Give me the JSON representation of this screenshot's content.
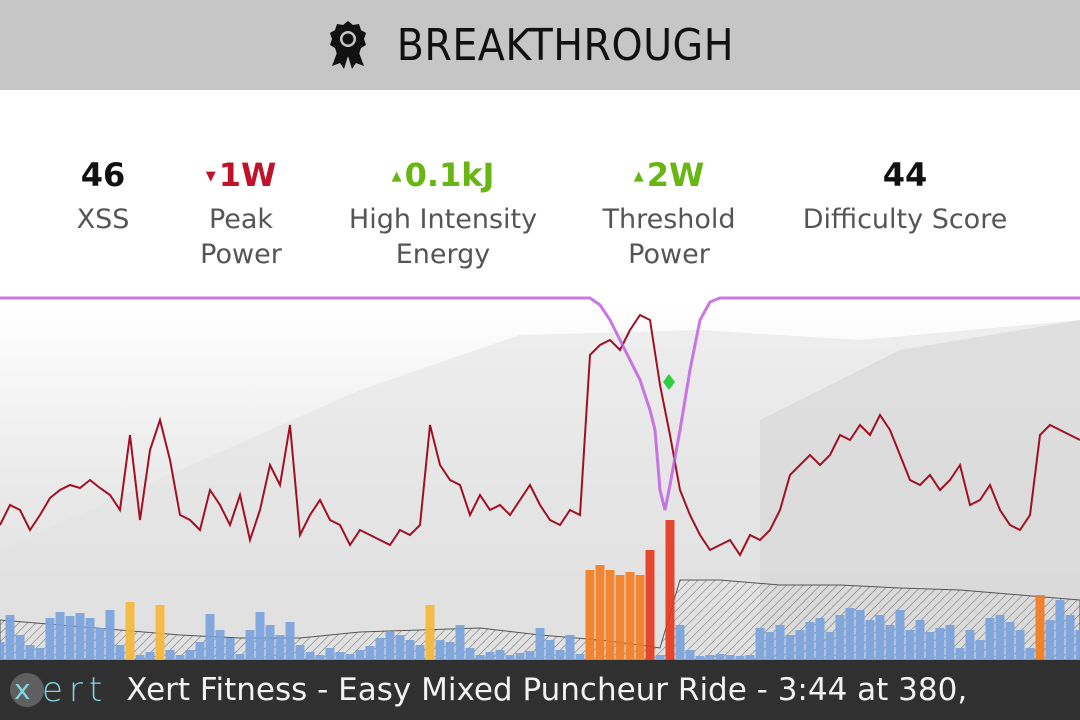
{
  "header": {
    "title": "BREAKTHROUGH",
    "icon": "award-ribbon-icon",
    "background": "#c6c6c6"
  },
  "stats": [
    {
      "value": "46",
      "label_lines": [
        "XSS",
        ""
      ],
      "trend": "none"
    },
    {
      "value": "1W",
      "label_lines": [
        "Peak",
        "Power"
      ],
      "trend": "down",
      "color": "#c1122b"
    },
    {
      "value": "0.1kJ",
      "label_lines": [
        "High Intensity",
        "Energy"
      ],
      "trend": "up",
      "color": "#67b614"
    },
    {
      "value": "2W",
      "label_lines": [
        "Threshold",
        "Power"
      ],
      "trend": "up",
      "color": "#67b614"
    },
    {
      "value": "44",
      "label_lines": [
        "Difficulty Score",
        ""
      ],
      "trend": "none"
    }
  ],
  "chart_data": {
    "type": "area",
    "grid": false,
    "legend": "none",
    "series": [
      {
        "kind": "power-bars",
        "colors": {
          "easy": "#7aa3dc",
          "moderate": "#f5b93a",
          "hard": "#f27d22",
          "peak": "#e53a1e"
        },
        "x": [
          0,
          10,
          20,
          30,
          40,
          50,
          60,
          70,
          80,
          90,
          100,
          110,
          120,
          130,
          140,
          150,
          160,
          170,
          180,
          190,
          200,
          210,
          220,
          230,
          240,
          250,
          260,
          270,
          280,
          290,
          300,
          310,
          320,
          330,
          340,
          350,
          360,
          370,
          380,
          390,
          400,
          410,
          420,
          430,
          440,
          450,
          460,
          470,
          480,
          490,
          500,
          510,
          520,
          530,
          540,
          550,
          560,
          570,
          580,
          590,
          600,
          610,
          620,
          630,
          640,
          650,
          660,
          670,
          680,
          690,
          700,
          710,
          720,
          730,
          740,
          750,
          760,
          770,
          780,
          790,
          800,
          810,
          820,
          830,
          840,
          850,
          860,
          870,
          880,
          890,
          900,
          910,
          920,
          930,
          940,
          950,
          960,
          970,
          980,
          990,
          1000,
          1010,
          1020,
          1030,
          1040,
          1050,
          1060,
          1070,
          1080
        ],
        "values": [
          0.18,
          0.45,
          0.25,
          0.15,
          0.12,
          0.42,
          0.48,
          0.44,
          0.47,
          0.42,
          0.32,
          0.5,
          0.15,
          0.58,
          0.05,
          0.08,
          0.55,
          0.1,
          0.05,
          0.1,
          0.18,
          0.46,
          0.3,
          0.22,
          0.06,
          0.3,
          0.48,
          0.35,
          0.25,
          0.38,
          0.15,
          0.08,
          0.05,
          0.12,
          0.08,
          0.06,
          0.1,
          0.14,
          0.22,
          0.28,
          0.25,
          0.2,
          0.15,
          0.55,
          0.2,
          0.18,
          0.35,
          0.12,
          0.05,
          0.08,
          0.1,
          0.05,
          0.07,
          0.09,
          0.32,
          0.2,
          0.1,
          0.25,
          0.06,
          0.9,
          0.95,
          0.9,
          0.85,
          0.88,
          0.85,
          1.1,
          0.05,
          1.4,
          0.35,
          0.1,
          0.04,
          0.05,
          0.06,
          0.05,
          0.04,
          0.05,
          0.32,
          0.28,
          0.35,
          0.25,
          0.3,
          0.38,
          0.42,
          0.28,
          0.45,
          0.52,
          0.5,
          0.4,
          0.45,
          0.35,
          0.5,
          0.3,
          0.4,
          0.28,
          0.32,
          0.35,
          0.12,
          0.3,
          0.2,
          0.42,
          0.45,
          0.38,
          0.3,
          0.12,
          0.65,
          0.4,
          0.6,
          0.45,
          0.3
        ],
        "zones": [
          "easy",
          "easy",
          "easy",
          "easy",
          "easy",
          "easy",
          "easy",
          "easy",
          "easy",
          "easy",
          "easy",
          "easy",
          "easy",
          "moderate",
          "easy",
          "easy",
          "moderate",
          "easy",
          "easy",
          "easy",
          "easy",
          "easy",
          "easy",
          "easy",
          "easy",
          "easy",
          "easy",
          "easy",
          "easy",
          "easy",
          "easy",
          "easy",
          "easy",
          "easy",
          "easy",
          "easy",
          "easy",
          "easy",
          "easy",
          "easy",
          "easy",
          "easy",
          "easy",
          "moderate",
          "easy",
          "easy",
          "easy",
          "easy",
          "easy",
          "easy",
          "easy",
          "easy",
          "easy",
          "easy",
          "easy",
          "easy",
          "easy",
          "easy",
          "easy",
          "hard",
          "hard",
          "hard",
          "hard",
          "hard",
          "hard",
          "peak",
          "easy",
          "peak",
          "easy",
          "easy",
          "easy",
          "easy",
          "easy",
          "easy",
          "easy",
          "easy",
          "easy",
          "easy",
          "easy",
          "easy",
          "easy",
          "easy",
          "easy",
          "easy",
          "easy",
          "easy",
          "easy",
          "easy",
          "easy",
          "easy",
          "easy",
          "easy",
          "easy",
          "easy",
          "easy",
          "easy",
          "easy",
          "easy",
          "easy",
          "easy",
          "easy",
          "easy",
          "easy",
          "easy",
          "hard",
          "easy",
          "easy",
          "easy",
          "easy"
        ]
      },
      {
        "kind": "mpa-line",
        "color": "#a01024",
        "x": [
          0,
          10,
          20,
          30,
          40,
          50,
          60,
          70,
          80,
          90,
          100,
          110,
          120,
          130,
          140,
          150,
          160,
          170,
          180,
          190,
          200,
          210,
          220,
          230,
          240,
          250,
          260,
          270,
          280,
          290,
          300,
          310,
          320,
          330,
          340,
          350,
          360,
          370,
          380,
          390,
          400,
          410,
          420,
          430,
          440,
          450,
          460,
          470,
          480,
          490,
          500,
          510,
          520,
          530,
          540,
          550,
          560,
          570,
          580,
          590,
          600,
          610,
          620,
          630,
          640,
          650,
          660,
          670,
          680,
          690,
          700,
          710,
          720,
          730,
          740,
          750,
          760,
          770,
          780,
          790,
          800,
          810,
          820,
          830,
          840,
          850,
          860,
          870,
          880,
          890,
          900,
          910,
          920,
          930,
          940,
          950,
          960,
          970,
          980,
          990,
          1000,
          1010,
          1020,
          1030,
          1040,
          1050,
          1060,
          1070,
          1080
        ],
        "values": [
          1.35,
          1.55,
          1.5,
          1.3,
          1.45,
          1.62,
          1.7,
          1.75,
          1.72,
          1.8,
          1.72,
          1.65,
          1.5,
          2.25,
          1.4,
          2.1,
          2.4,
          2.0,
          1.45,
          1.4,
          1.3,
          1.7,
          1.55,
          1.35,
          1.65,
          1.2,
          1.5,
          1.95,
          1.75,
          2.35,
          1.25,
          1.45,
          1.6,
          1.4,
          1.35,
          1.15,
          1.3,
          1.25,
          1.2,
          1.15,
          1.3,
          1.25,
          1.35,
          2.35,
          1.95,
          1.8,
          1.75,
          1.45,
          1.65,
          1.5,
          1.55,
          1.45,
          1.6,
          1.75,
          1.55,
          1.4,
          1.35,
          1.5,
          1.45,
          3.05,
          3.15,
          3.2,
          3.1,
          3.3,
          3.45,
          3.4,
          2.75,
          2.25,
          1.7,
          1.45,
          1.25,
          1.1,
          1.15,
          1.2,
          1.05,
          1.25,
          1.2,
          1.3,
          1.5,
          1.85,
          1.95,
          2.05,
          1.95,
          2.05,
          2.25,
          2.2,
          2.35,
          2.25,
          2.45,
          2.3,
          2.05,
          1.8,
          1.75,
          1.85,
          1.7,
          1.8,
          1.95,
          1.55,
          1.6,
          1.75,
          1.5,
          1.35,
          1.3,
          1.45,
          2.25,
          2.35,
          2.3,
          2.25,
          2.2
        ]
      },
      {
        "kind": "threshold-area",
        "color": "#555555",
        "x": [
          0,
          60,
          120,
          180,
          240,
          300,
          360,
          420,
          480,
          540,
          600,
          640,
          660,
          680,
          720,
          780,
          840,
          900,
          960,
          1020,
          1080
        ],
        "values": [
          0.4,
          0.35,
          0.3,
          0.25,
          0.22,
          0.22,
          0.28,
          0.3,
          0.32,
          0.25,
          0.2,
          0.15,
          0.12,
          0.8,
          0.8,
          0.75,
          0.75,
          0.72,
          0.7,
          0.65,
          0.6
        ]
      },
      {
        "kind": "fatigue-line",
        "color": "#c060e0",
        "x": [
          0,
          100,
          200,
          300,
          400,
          500,
          590,
          600,
          610,
          620,
          630,
          640,
          650,
          655,
          660,
          665,
          670,
          680,
          690,
          700,
          710,
          720,
          800,
          900,
          1000,
          1080
        ],
        "values": [
          3.62,
          3.62,
          3.62,
          3.62,
          3.62,
          3.62,
          3.62,
          3.55,
          3.4,
          3.2,
          3.0,
          2.8,
          2.5,
          2.3,
          1.7,
          1.5,
          1.75,
          2.3,
          2.9,
          3.4,
          3.58,
          3.62,
          3.62,
          3.62,
          3.62,
          3.62
        ]
      }
    ],
    "marker": {
      "x": 669,
      "y": 2.78,
      "color": "#2ecc40",
      "shape": "diamond"
    }
  },
  "footer": {
    "logo_text": "ert",
    "logo_mark": "x",
    "ticker": "Xert Fitness - Easy Mixed Puncheur Ride - 3:44 at 380,"
  }
}
